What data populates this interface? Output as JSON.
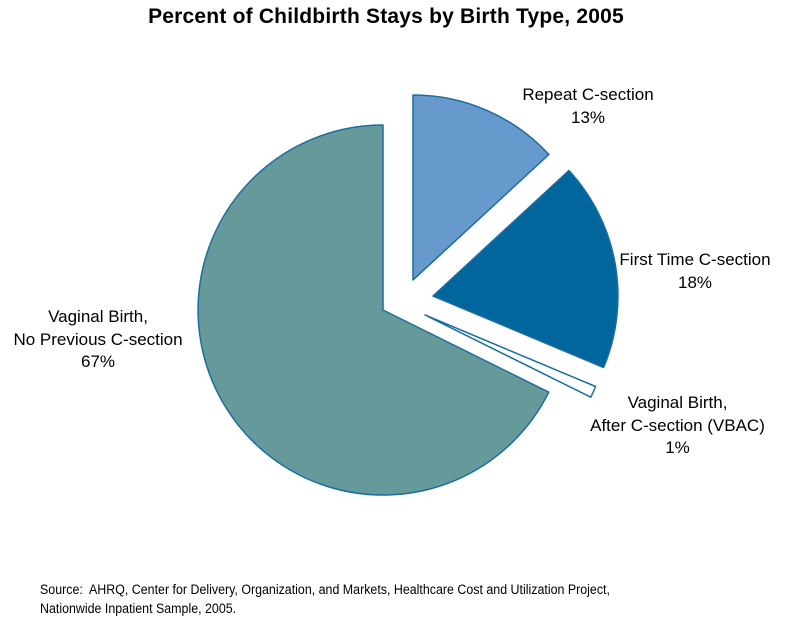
{
  "title": "Percent of Childbirth Stays by Birth Type, 2005",
  "chart_data": {
    "type": "pie",
    "title": "Percent of Childbirth Stays by Birth Type, 2005",
    "unit": "percent",
    "legend": "none",
    "labels_on_chart": true,
    "slices": [
      {
        "id": "repeat-c-section",
        "label": "Repeat C-section",
        "value": 13,
        "color": "#6699cc"
      },
      {
        "id": "first-time-c-section",
        "label": "First Time C-section",
        "value": 18,
        "color": "#00669c"
      },
      {
        "id": "vbac",
        "label": "Vaginal Birth, After C-section (VBAC)",
        "value": 1,
        "color": "#ffffff"
      },
      {
        "id": "vaginal-no-previous",
        "label": "Vaginal Birth, No Previous C-section",
        "value": 67,
        "color": "#669a9a"
      }
    ],
    "layout": {
      "radius": 185,
      "start_angle_deg_from_12_clockwise": 0,
      "stroke_color": "#1b6d9e",
      "stroke_width": 1.5,
      "exploded": true,
      "apexes": {
        "repeat-c-section": [
          413,
          280
        ],
        "first-time-c-section": [
          433,
          296
        ],
        "vbac": [
          425,
          315
        ],
        "vaginal-no-previous": [
          383,
          310
        ]
      }
    }
  },
  "callouts": {
    "repeat": {
      "lines": [
        "Repeat C-section",
        "13%"
      ]
    },
    "first": {
      "lines": [
        "First Time C-section",
        "18%"
      ]
    },
    "vbac": {
      "lines": [
        "Vaginal Birth,",
        "After C-section (VBAC)",
        "1%"
      ]
    },
    "vaginal": {
      "lines": [
        "Vaginal Birth,",
        "No Previous C-section",
        "67%"
      ]
    }
  },
  "source": {
    "line1": "Source:  AHRQ, Center for Delivery, Organization, and Markets, Healthcare Cost and Utilization Project,",
    "line2": "Nationwide Inpatient Sample, 2005."
  }
}
